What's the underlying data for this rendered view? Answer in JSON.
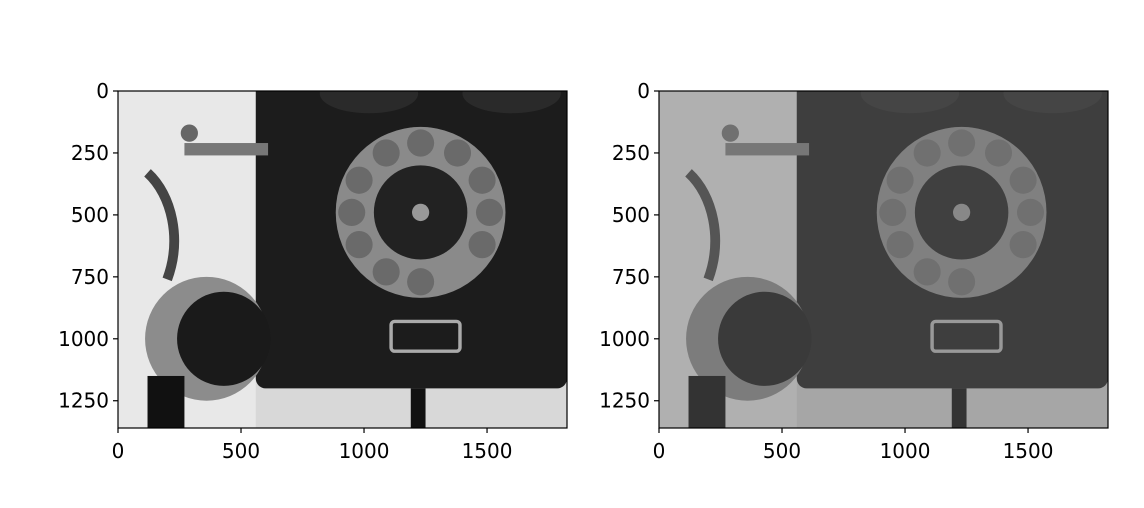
{
  "chart_data": [
    {
      "type": "image",
      "xlim": [
        0,
        1825
      ],
      "ylim": [
        1360,
        0
      ],
      "xticks": [
        0,
        500,
        1000,
        1500
      ],
      "yticks": [
        0,
        250,
        500,
        750,
        1000,
        1250
      ]
    },
    {
      "type": "image",
      "xlim": [
        0,
        1825
      ],
      "ylim": [
        1360,
        0
      ],
      "xticks": [
        0,
        500,
        1000,
        1500
      ],
      "yticks": [
        0,
        250,
        500,
        750,
        1000,
        1250
      ]
    }
  ]
}
